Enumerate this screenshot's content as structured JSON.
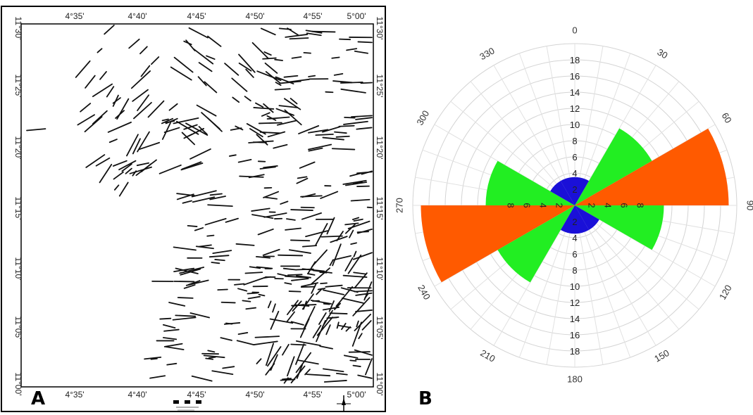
{
  "panels": {
    "a_label": "A",
    "b_label": "B"
  },
  "map": {
    "lon_ticks_top": [
      "4°35'",
      "4°40'",
      "4°45'",
      "4°50'",
      "4°55'",
      "5°00'"
    ],
    "lon_ticks_bottom": [
      "4°35'",
      "4°40'",
      "4°45'",
      "4°50'",
      "4°55'",
      "5°00'"
    ],
    "lat_ticks_left": [
      "11°30'",
      "11°25'",
      "11°20'",
      "11°15'",
      "11°10'",
      "11°05'",
      "11°00'"
    ],
    "lat_ticks_right": [
      "11°30'",
      "11°25'",
      "11°20'",
      "11°15'",
      "11°10'",
      "11°05'",
      "11°00'"
    ],
    "lineament_color": "#111111"
  },
  "chart_data": {
    "type": "rose",
    "angle_labels": [
      "0",
      "30",
      "60",
      "90",
      "120",
      "150",
      "180",
      "210",
      "240",
      "270",
      "300",
      "330"
    ],
    "radial_ticks_upper": [
      "2",
      "4",
      "6",
      "8",
      "10",
      "12",
      "14",
      "16",
      "18"
    ],
    "radial_ticks_lower": [
      "2",
      "4",
      "6",
      "8",
      "10",
      "12",
      "14",
      "16",
      "18"
    ],
    "radial_ticks_right": [
      "2",
      "4",
      "6",
      "8"
    ],
    "radial_ticks_left": [
      "2",
      "4",
      "6",
      "8"
    ],
    "rmax": 20,
    "petals": [
      {
        "from": 0,
        "to": 30,
        "value": 3.5,
        "color": "#1a10d8"
      },
      {
        "from": 30,
        "to": 60,
        "value": 11,
        "color": "#22ee22"
      },
      {
        "from": 60,
        "to": 90,
        "value": 19,
        "color": "#ff5a00"
      },
      {
        "from": 90,
        "to": 120,
        "value": 11,
        "color": "#22ee22"
      },
      {
        "from": 120,
        "to": 150,
        "value": 3.5,
        "color": "#1a10d8"
      },
      {
        "from": 150,
        "to": 180,
        "value": 3.5,
        "color": "#1a10d8"
      },
      {
        "from": 180,
        "to": 210,
        "value": 3.5,
        "color": "#1a10d8"
      },
      {
        "from": 210,
        "to": 240,
        "value": 11,
        "color": "#22ee22"
      },
      {
        "from": 240,
        "to": 270,
        "value": 19,
        "color": "#ff5a00"
      },
      {
        "from": 270,
        "to": 300,
        "value": 11,
        "color": "#22ee22"
      },
      {
        "from": 300,
        "to": 330,
        "value": 3.5,
        "color": "#1a10d8"
      },
      {
        "from": 330,
        "to": 360,
        "value": 3.5,
        "color": "#1a10d8"
      }
    ],
    "grid": true,
    "direction": "clockwise",
    "zero_at": "top"
  }
}
